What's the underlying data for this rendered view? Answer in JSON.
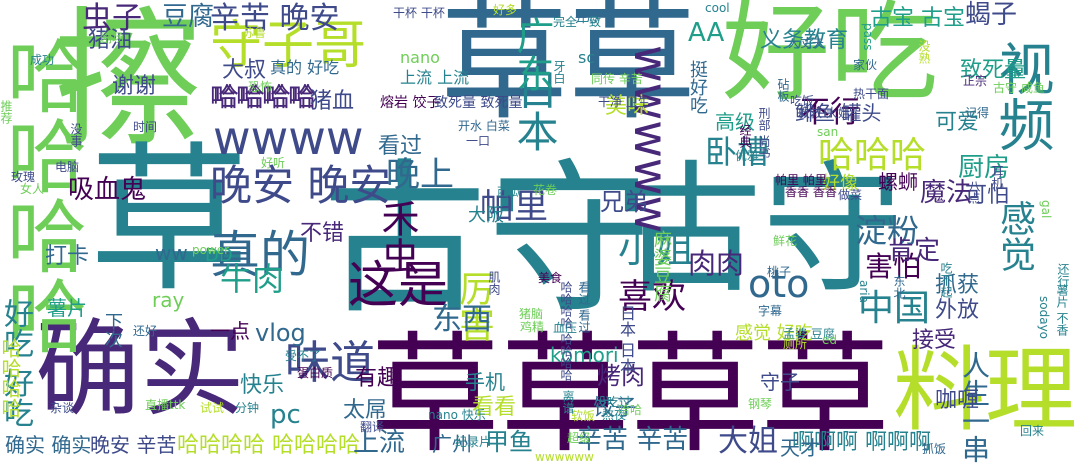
{
  "palette": {
    "dark_purple": "#440154",
    "purple": "#482878",
    "indigo": "#3e4a89",
    "blue": "#31688e",
    "teal": "#26828e",
    "green_teal": "#1f9e89",
    "green": "#35b779",
    "light_green": "#6ece58",
    "yellow_green": "#b5de2b"
  },
  "words": [
    {
      "text": "草草草草",
      "colorKey": "dark_purple"
    },
    {
      "text": "古守",
      "colorKey": "teal"
    },
    {
      "text": "古守",
      "colorKey": "teal"
    },
    {
      "text": "草草",
      "colorKey": "blue"
    },
    {
      "text": "好吃",
      "colorKey": "light_green"
    },
    {
      "text": "确实",
      "colorKey": "purple"
    },
    {
      "text": "料理",
      "colorKey": "yellow_green"
    },
    {
      "text": "擦",
      "colorKey": "light_green"
    },
    {
      "text": "草",
      "colorKey": "teal"
    },
    {
      "text": "哈哈哈哈",
      "colorKey": "light_green"
    },
    {
      "text": "守子哥",
      "colorKey": "yellow_green"
    },
    {
      "text": "wwww",
      "colorKey": "indigo"
    },
    {
      "text": "wwwww",
      "colorKey": "purple"
    },
    {
      "text": "视频",
      "colorKey": "teal"
    },
    {
      "text": "真的",
      "colorKey": "blue"
    },
    {
      "text": "这是",
      "colorKey": "dark_purple"
    },
    {
      "text": "晚安 晚安",
      "colorKey": "indigo"
    },
    {
      "text": "小姐",
      "colorKey": "teal"
    },
    {
      "text": "味道",
      "colorKey": "indigo"
    },
    {
      "text": "oto",
      "colorKey": "blue"
    },
    {
      "text": "晚上",
      "colorKey": "blue"
    },
    {
      "text": "禾虫",
      "colorKey": "dark_purple"
    },
    {
      "text": "日本",
      "colorKey": "teal"
    },
    {
      "text": "中国",
      "colorKey": "teal"
    },
    {
      "text": "广东",
      "colorKey": "green_teal"
    },
    {
      "text": "厉害",
      "colorKey": "yellow_green"
    },
    {
      "text": "喜欢",
      "colorKey": "dark_purple"
    },
    {
      "text": "感觉",
      "colorKey": "teal"
    },
    {
      "text": "帕里",
      "colorKey": "indigo"
    },
    {
      "text": "哈哈哈",
      "colorKey": "yellow_green"
    },
    {
      "text": "东西",
      "colorKey": "blue"
    },
    {
      "text": "辛苦 晚安",
      "colorKey": "indigo"
    },
    {
      "text": "虫子",
      "colorKey": "purple"
    },
    {
      "text": "哈哈哈哈",
      "colorKey": "purple"
    },
    {
      "text": "吸血鬼",
      "colorKey": "dark_purple"
    },
    {
      "text": "牛肉",
      "colorKey": "green_teal"
    },
    {
      "text": "淀粉",
      "colorKey": "blue"
    },
    {
      "text": "害怕",
      "colorKey": "dark_purple"
    },
    {
      "text": "卧槽",
      "colorKey": "teal"
    },
    {
      "text": "肯定",
      "colorKey": "purple"
    },
    {
      "text": "烤肉",
      "colorKey": "purple"
    },
    {
      "text": "辛苦 辛苦",
      "colorKey": "blue"
    },
    {
      "text": "大姐",
      "colorKey": "indigo"
    },
    {
      "text": "人生一串",
      "colorKey": "blue"
    },
    {
      "text": "啊啊啊 啊啊啊",
      "colorKey": "teal"
    },
    {
      "text": "哈哈哈哈 哈哈哈哈",
      "colorKey": "yellow_green"
    },
    {
      "text": "确实 确实",
      "colorKey": "blue"
    },
    {
      "text": "晚安 辛苦",
      "colorKey": "indigo"
    },
    {
      "text": "上流",
      "colorKey": "blue"
    },
    {
      "text": "广州",
      "colorKey": "blue"
    },
    {
      "text": "甲鱼",
      "colorKey": "teal"
    },
    {
      "text": "天才",
      "colorKey": "blue"
    },
    {
      "text": "肉肉",
      "colorKey": "purple"
    },
    {
      "text": "猪油",
      "colorKey": "indigo"
    },
    {
      "text": "豆腐",
      "colorKey": "blue"
    },
    {
      "text": "古宝 古宝",
      "colorKey": "green_teal"
    },
    {
      "text": "义务教育",
      "colorKey": "teal"
    },
    {
      "text": "蝎子",
      "colorKey": "indigo"
    },
    {
      "text": "致死量",
      "colorKey": "green_teal"
    },
    {
      "text": "可爱",
      "colorKey": "teal"
    },
    {
      "text": "厨房",
      "colorKey": "green_teal"
    },
    {
      "text": "可怕",
      "colorKey": "indigo"
    },
    {
      "text": "魔法",
      "colorKey": "purple"
    },
    {
      "text": "高级",
      "colorKey": "green_teal"
    },
    {
      "text": "AA",
      "colorKey": "green_teal"
    },
    {
      "text": "大叔",
      "colorKey": "indigo"
    },
    {
      "text": "哈哈哈哈",
      "colorKey": "purple"
    },
    {
      "text": "谢谢",
      "colorKey": "indigo"
    },
    {
      "text": "看过",
      "colorKey": "blue"
    },
    {
      "text": "兄弟",
      "colorKey": "indigo"
    },
    {
      "text": "vlog",
      "colorKey": "blue"
    },
    {
      "text": "一点",
      "colorKey": "dark_purple"
    },
    {
      "text": "不错",
      "colorKey": "purple"
    },
    {
      "text": "有趣",
      "colorKey": "dark_purple"
    },
    {
      "text": "抓获",
      "colorKey": "blue"
    },
    {
      "text": "外放",
      "colorKey": "indigo"
    },
    {
      "text": "接受",
      "colorKey": "purple"
    },
    {
      "text": "咖喱",
      "colorKey": "indigo"
    },
    {
      "text": "饺子",
      "colorKey": "blue"
    },
    {
      "text": "手机",
      "colorKey": "teal"
    },
    {
      "text": "看看",
      "colorKey": "yellow_green"
    },
    {
      "text": "太屌",
      "colorKey": "blue"
    },
    {
      "text": "快乐",
      "colorKey": "teal"
    },
    {
      "text": "美味",
      "colorKey": "yellow_green"
    },
    {
      "text": "螺蛳",
      "colorKey": "dark_purple"
    },
    {
      "text": "好像",
      "colorKey": "yellow_green"
    },
    {
      "text": "不行",
      "colorKey": "dark_purple"
    },
    {
      "text": "pc",
      "colorKey": "teal"
    },
    {
      "text": "ww",
      "colorKey": "blue"
    },
    {
      "text": "ray",
      "colorKey": "light_green"
    },
    {
      "text": "DD",
      "colorKey": "green_teal"
    },
    {
      "text": "komori",
      "colorKey": "green_teal"
    },
    {
      "text": "守子",
      "colorKey": "indigo"
    },
    {
      "text": "猪血",
      "colorKey": "indigo"
    },
    {
      "text": "薯片",
      "colorKey": "green_teal"
    },
    {
      "text": "打卡",
      "colorKey": "blue"
    },
    {
      "text": "大阪",
      "colorKey": "teal"
    },
    {
      "text": "下次",
      "colorKey": "blue"
    },
    {
      "text": "好吃 好吃",
      "colorKey": "teal"
    },
    {
      "text": "哈哈哈哈",
      "colorKey": "yellow_green"
    },
    {
      "text": "感觉 好吃",
      "colorKey": "yellow_green"
    },
    {
      "text": "日本 日本",
      "colorKey": "indigo"
    },
    {
      "text": "麻婆豆腐",
      "colorKey": "light_green"
    },
    {
      "text": "挺好吃",
      "colorKey": "blue"
    },
    {
      "text": "真的 好吃",
      "colorKey": "blue"
    },
    {
      "text": "鲱鱼 罐头",
      "colorKey": "indigo"
    },
    {
      "text": "nano",
      "colorKey": "light_green"
    },
    {
      "text": "sc",
      "colorKey": "teal"
    },
    {
      "text": "上流 上流",
      "colorKey": "teal"
    },
    {
      "text": "熔岩 饺子",
      "colorKey": "dark_purple"
    },
    {
      "text": "致死量 致死量",
      "colorKey": "indigo"
    },
    {
      "text": "开水 白菜",
      "colorKey": "blue"
    },
    {
      "text": "同传 辛苦",
      "colorKey": "light_green"
    },
    {
      "text": "干净 卫生",
      "colorKey": "indigo"
    },
    {
      "text": "牙白",
      "colorKey": "teal"
    },
    {
      "text": "杂谈",
      "colorKey": "indigo"
    },
    {
      "text": "分钟",
      "colorKey": "teal"
    },
    {
      "text": "蛋白质",
      "colorKey": "dark_purple"
    },
    {
      "text": "直播ttk",
      "colorKey": "light_green"
    },
    {
      "text": "翻译",
      "colorKey": "indigo"
    },
    {
      "text": "试试",
      "colorKey": "yellow_green"
    },
    {
      "text": "还好",
      "colorKey": "blue"
    },
    {
      "text": "受不了",
      "colorKey": "teal"
    },
    {
      "text": "nano 快乐",
      "colorKey": "teal"
    },
    {
      "text": "纪录片",
      "colorKey": "teal"
    },
    {
      "text": "哈哈哈哈 哈哈哈哈",
      "colorKey": "indigo"
    },
    {
      "text": "看过 看过",
      "colorKey": "blue"
    },
    {
      "text": "鸡精",
      "colorKey": "light_green"
    },
    {
      "text": "钢琴",
      "colorKey": "light_green"
    },
    {
      "text": "字幕",
      "colorKey": "blue"
    },
    {
      "text": "鲜花",
      "colorKey": "light_green"
    },
    {
      "text": "桃子",
      "colorKey": "blue"
    },
    {
      "text": "东北",
      "colorKey": "blue"
    },
    {
      "text": "aria",
      "colorKey": "teal"
    },
    {
      "text": "吃不起",
      "colorKey": "teal"
    },
    {
      "text": "孟婆 豆腐",
      "colorKey": "teal"
    },
    {
      "text": "sodayo",
      "colorKey": "teal"
    },
    {
      "text": "还行",
      "colorKey": "teal"
    },
    {
      "text": "回来",
      "colorKey": "teal"
    },
    {
      "text": "厕所",
      "colorKey": "yellow_green"
    },
    {
      "text": "ed",
      "colorKey": "light_green"
    },
    {
      "text": "gal",
      "colorKey": "light_green"
    },
    {
      "text": "薯片 不香",
      "colorKey": "teal"
    },
    {
      "text": "八点",
      "colorKey": "indigo"
    },
    {
      "text": "耳机",
      "colorKey": "indigo"
    },
    {
      "text": "抓饭",
      "colorKey": "blue"
    },
    {
      "text": "做菜",
      "colorKey": "indigo"
    },
    {
      "text": "优雅",
      "colorKey": "teal"
    },
    {
      "text": "帕里 帕里",
      "colorKey": "dark_purple"
    },
    {
      "text": "救救 大姐",
      "colorKey": "indigo"
    },
    {
      "text": "香香 香香",
      "colorKey": "dark_purple"
    },
    {
      "text": "san",
      "colorKey": "light_green"
    },
    {
      "text": "记得",
      "colorKey": "blue"
    },
    {
      "text": "没熟",
      "colorKey": "yellow_green"
    },
    {
      "text": "古守 咸鱼",
      "colorKey": "light_green"
    },
    {
      "text": "正宗",
      "colorKey": "purple"
    },
    {
      "text": "热干面",
      "colorKey": "indigo"
    },
    {
      "text": "家伙",
      "colorKey": "blue"
    },
    {
      "text": "吃饭",
      "colorKey": "indigo"
    },
    {
      "text": "pass",
      "colorKey": "green_teal"
    },
    {
      "text": "刑部 尚书",
      "colorKey": "indigo"
    },
    {
      "text": "砧板",
      "colorKey": "blue"
    },
    {
      "text": "经典",
      "colorKey": "dark_purple"
    },
    {
      "text": "大丈夫",
      "colorKey": "blue"
    },
    {
      "text": "开心",
      "colorKey": "blue"
    },
    {
      "text": "完全一致",
      "colorKey": "teal"
    },
    {
      "text": "cool",
      "colorKey": "teal"
    },
    {
      "text": "好多",
      "colorKey": "yellow_green"
    },
    {
      "text": "干杯 干杯",
      "colorKey": "indigo"
    },
    {
      "text": "苏鲁",
      "colorKey": "yellow_green"
    },
    {
      "text": "剧场",
      "colorKey": "light_green"
    },
    {
      "text": "成功",
      "colorKey": "teal"
    },
    {
      "text": "推荐",
      "colorKey": "light_green"
    },
    {
      "text": "恐怖",
      "colorKey": "light_green"
    },
    {
      "text": "没事",
      "colorKey": "indigo"
    },
    {
      "text": "时间",
      "colorKey": "indigo"
    },
    {
      "text": "电脑",
      "colorKey": "indigo"
    },
    {
      "text": "玫瑰",
      "colorKey": "indigo"
    },
    {
      "text": "女人",
      "colorKey": "light_green"
    },
    {
      "text": "好听",
      "colorKey": "light_green"
    },
    {
      "text": "power",
      "colorKey": "light_green"
    },
    {
      "text": "西瓜",
      "colorKey": "teal"
    },
    {
      "text": "一口",
      "colorKey": "indigo"
    },
    {
      "text": "花卷",
      "colorKey": "light_green"
    },
    {
      "text": "美食",
      "colorKey": "dark_purple"
    },
    {
      "text": "肌肉",
      "colorKey": "indigo"
    },
    {
      "text": "猪脑",
      "colorKey": "light_green"
    },
    {
      "text": "血压",
      "colorKey": "teal"
    },
    {
      "text": "没吃过",
      "colorKey": "teal"
    },
    {
      "text": "软饭",
      "colorKey": "yellow_green"
    },
    {
      "text": "熬夜",
      "colorKey": "teal"
    },
    {
      "text": "离谱",
      "colorKey": "teal"
    },
    {
      "text": "哈哈",
      "colorKey": "light_green"
    },
    {
      "text": "超级",
      "colorKey": "light_green"
    },
    {
      "text": "wwwwww",
      "colorKey": "yellow_green"
    },
    {
      "text": "感觉 黄",
      "colorKey": "teal"
    },
    {
      "text": "山下智久",
      "colorKey": "green_teal"
    },
    {
      "text": "火锅 火锅",
      "colorKey": "yellow_green"
    },
    {
      "text": "不要",
      "colorKey": "light_green"
    }
  ]
}
